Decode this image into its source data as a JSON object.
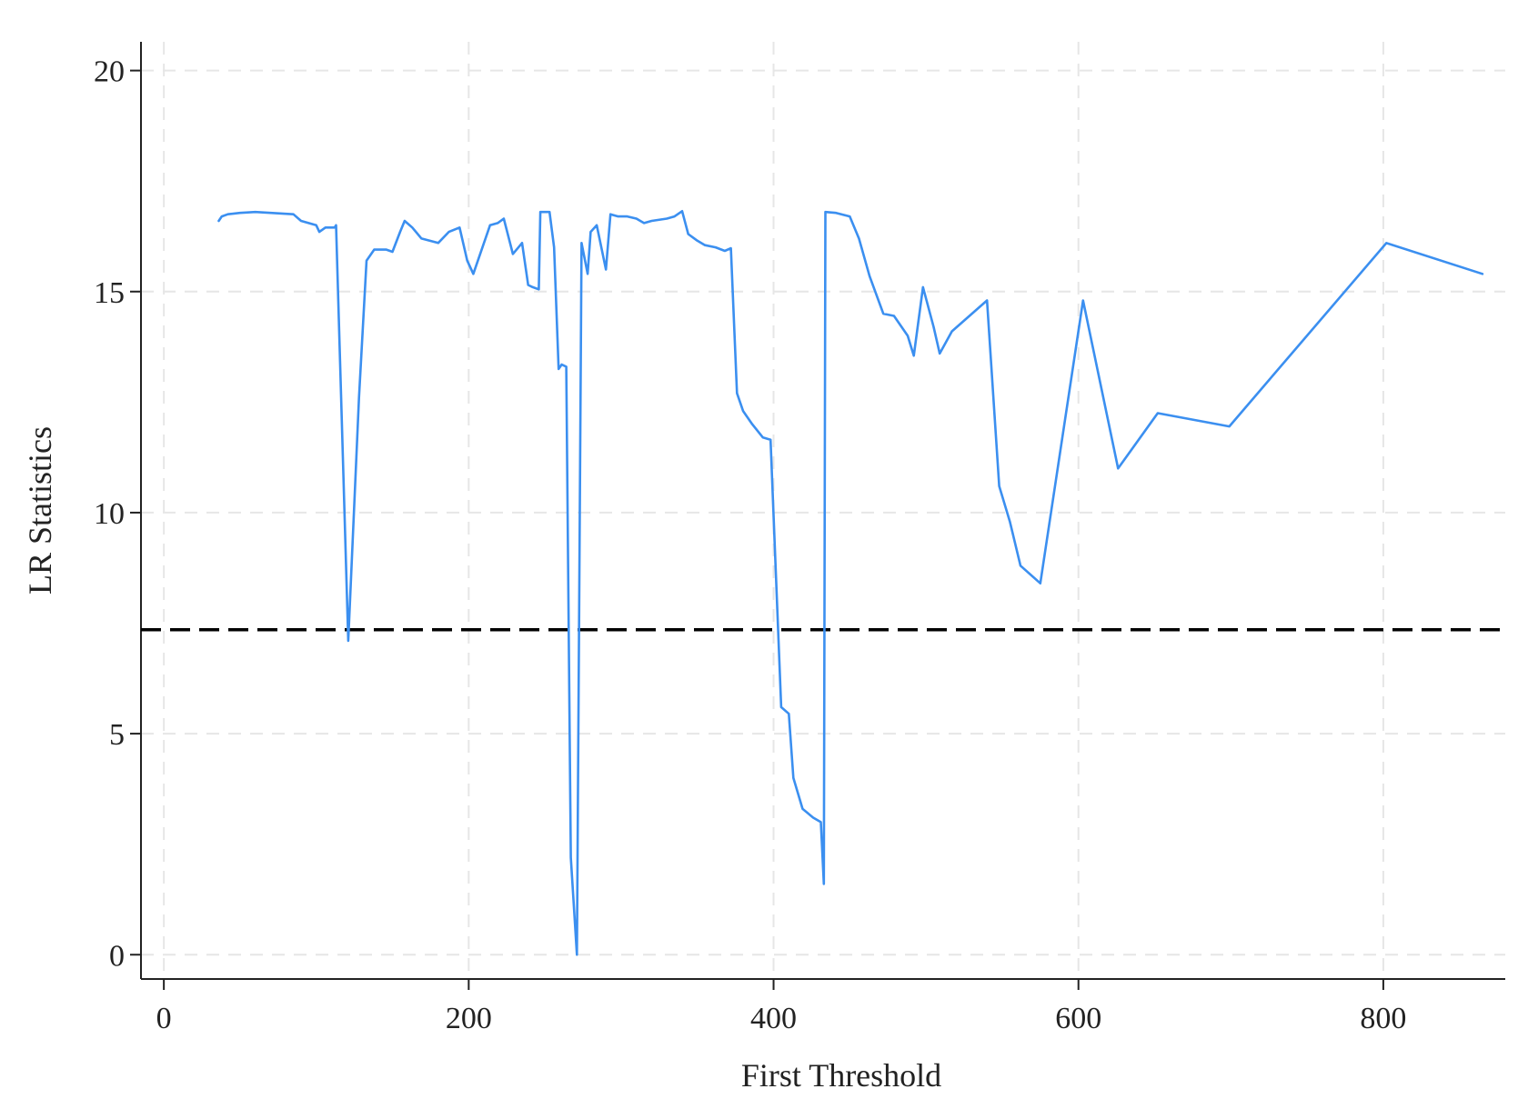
{
  "chart_data": {
    "type": "line",
    "title": "",
    "xlabel": "First Threshold",
    "ylabel": "LR Statistics",
    "xlim": [
      -15,
      880
    ],
    "ylim": [
      -0.55,
      20.65
    ],
    "x_ticks": [
      0,
      200,
      400,
      600,
      800
    ],
    "x_tick_labels": [
      "0",
      "200",
      "400",
      "600",
      "800"
    ],
    "y_ticks": [
      0,
      5,
      10,
      15,
      20
    ],
    "y_tick_labels": [
      "0",
      "5",
      "10",
      "15",
      "20"
    ],
    "grid": true,
    "legend": "none",
    "reference_line": {
      "y": 7.35,
      "style": "dashed",
      "color": "#000000"
    },
    "series": [
      {
        "color": "#3b8ff0",
        "points": [
          [
            36,
            16.6
          ],
          [
            38,
            16.7
          ],
          [
            42,
            16.75
          ],
          [
            50,
            16.78
          ],
          [
            60,
            16.8
          ],
          [
            70,
            16.78
          ],
          [
            80,
            16.76
          ],
          [
            85,
            16.75
          ],
          [
            90,
            16.6
          ],
          [
            100,
            16.5
          ],
          [
            102,
            16.35
          ],
          [
            106,
            16.45
          ],
          [
            112,
            16.45
          ],
          [
            113,
            16.5
          ],
          [
            121,
            7.1
          ],
          [
            128,
            12.6
          ],
          [
            133,
            15.7
          ],
          [
            138,
            15.95
          ],
          [
            146,
            15.95
          ],
          [
            150,
            15.9
          ],
          [
            155,
            16.35
          ],
          [
            158,
            16.6
          ],
          [
            163,
            16.45
          ],
          [
            169,
            16.2
          ],
          [
            180,
            16.1
          ],
          [
            187,
            16.35
          ],
          [
            194,
            16.45
          ],
          [
            199,
            15.7
          ],
          [
            203,
            15.4
          ],
          [
            214,
            16.5
          ],
          [
            219,
            16.55
          ],
          [
            223,
            16.65
          ],
          [
            229,
            15.85
          ],
          [
            235,
            16.1
          ],
          [
            239,
            15.15
          ],
          [
            242,
            15.1
          ],
          [
            246,
            15.05
          ],
          [
            247,
            16.8
          ],
          [
            253,
            16.8
          ],
          [
            256,
            16.0
          ],
          [
            259,
            13.25
          ],
          [
            261,
            13.35
          ],
          [
            264,
            13.3
          ],
          [
            267,
            2.2
          ],
          [
            271,
            0.0
          ],
          [
            274,
            16.1
          ],
          [
            278,
            15.4
          ],
          [
            280,
            16.35
          ],
          [
            284,
            16.5
          ],
          [
            290,
            15.5
          ],
          [
            293,
            16.75
          ],
          [
            298,
            16.7
          ],
          [
            304,
            16.7
          ],
          [
            310,
            16.65
          ],
          [
            315,
            16.55
          ],
          [
            320,
            16.6
          ],
          [
            330,
            16.65
          ],
          [
            335,
            16.7
          ],
          [
            340,
            16.82
          ],
          [
            344,
            16.3
          ],
          [
            350,
            16.15
          ],
          [
            355,
            16.05
          ],
          [
            362,
            16.0
          ],
          [
            368,
            15.92
          ],
          [
            372,
            15.98
          ],
          [
            376,
            12.7
          ],
          [
            380,
            12.3
          ],
          [
            386,
            12.0
          ],
          [
            393,
            11.7
          ],
          [
            398,
            11.65
          ],
          [
            405,
            5.6
          ],
          [
            410,
            5.45
          ],
          [
            413,
            4.0
          ],
          [
            419,
            3.3
          ],
          [
            426,
            3.1
          ],
          [
            431,
            3.0
          ],
          [
            433,
            1.6
          ],
          [
            434,
            16.8
          ],
          [
            441,
            16.78
          ],
          [
            450,
            16.7
          ],
          [
            456,
            16.2
          ],
          [
            463,
            15.35
          ],
          [
            472,
            14.5
          ],
          [
            479,
            14.45
          ],
          [
            488,
            14.0
          ],
          [
            492,
            13.55
          ],
          [
            498,
            15.1
          ],
          [
            505,
            14.2
          ],
          [
            509,
            13.6
          ],
          [
            517,
            14.1
          ],
          [
            540,
            14.8
          ],
          [
            548,
            10.6
          ],
          [
            555,
            9.8
          ],
          [
            562,
            8.8
          ],
          [
            575,
            8.4
          ],
          [
            603,
            14.8
          ],
          [
            626,
            11.0
          ],
          [
            652,
            12.25
          ],
          [
            699,
            11.95
          ],
          [
            802,
            16.1
          ],
          [
            865,
            15.4
          ]
        ]
      }
    ]
  }
}
